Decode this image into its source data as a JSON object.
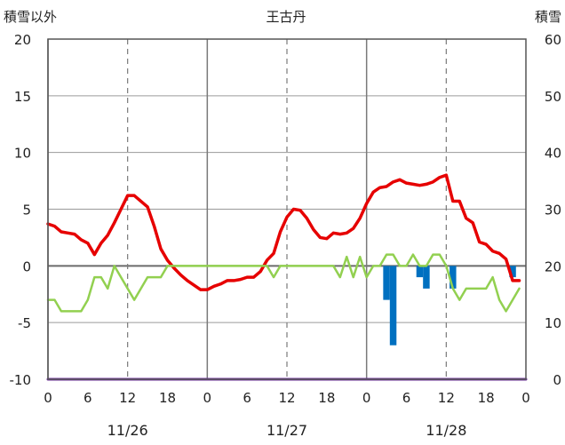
{
  "chart_data": {
    "type": "line",
    "title": "王古丹",
    "left_axis_label": "積雪以外",
    "right_axis_label": "積雪",
    "y_left": {
      "min": -10,
      "max": 20,
      "ticks": [
        20,
        15,
        10,
        5,
        0,
        -5,
        -10
      ],
      "tick_labels": [
        "20",
        "15",
        "10",
        "5",
        "0",
        "-5",
        "-10"
      ]
    },
    "y_right": {
      "min": 0,
      "max": 60,
      "ticks": [
        60,
        50,
        40,
        30,
        20,
        10,
        0
      ],
      "tick_labels": [
        "60",
        "50",
        "40",
        "30",
        "20",
        "10",
        "0"
      ]
    },
    "x_axis": {
      "hours_total": 72,
      "ticks": [
        0,
        6,
        12,
        18,
        24,
        30,
        36,
        42,
        48,
        54,
        60,
        66,
        72
      ],
      "tick_labels": [
        "0",
        "6",
        "12",
        "18",
        "0",
        "6",
        "12",
        "18",
        "0",
        "6",
        "12",
        "18",
        "0"
      ],
      "day_starts": [
        0,
        24,
        48
      ],
      "date_labels": [
        {
          "at": 12,
          "label": "11/26"
        },
        {
          "at": 36,
          "label": "11/27"
        },
        {
          "at": 60,
          "label": "11/28"
        }
      ],
      "minor_dashed": [
        12,
        36,
        60
      ]
    },
    "grid": true,
    "series": [
      {
        "axis": "left",
        "style": "line",
        "color": "#e60000",
        "width": 3.5,
        "points": [
          [
            0,
            3.7
          ],
          [
            1,
            3.5
          ],
          [
            2,
            3.0
          ],
          [
            3,
            2.9
          ],
          [
            4,
            2.8
          ],
          [
            5,
            2.3
          ],
          [
            6,
            2.0
          ],
          [
            7,
            1.0
          ],
          [
            8,
            2.0
          ],
          [
            9,
            2.7
          ],
          [
            10,
            3.8
          ],
          [
            11,
            5.0
          ],
          [
            12,
            6.2
          ],
          [
            13,
            6.2
          ],
          [
            14,
            5.7
          ],
          [
            15,
            5.2
          ],
          [
            16,
            3.5
          ],
          [
            17,
            1.5
          ],
          [
            18,
            0.5
          ],
          [
            19,
            -0.2
          ],
          [
            20,
            -0.8
          ],
          [
            21,
            -1.3
          ],
          [
            22,
            -1.7
          ],
          [
            23,
            -2.1
          ],
          [
            24,
            -2.1
          ],
          [
            25,
            -1.8
          ],
          [
            26,
            -1.6
          ],
          [
            27,
            -1.3
          ],
          [
            28,
            -1.3
          ],
          [
            29,
            -1.2
          ],
          [
            30,
            -1.0
          ],
          [
            31,
            -1.0
          ],
          [
            32,
            -0.5
          ],
          [
            33,
            0.5
          ],
          [
            34,
            1.1
          ],
          [
            35,
            3.0
          ],
          [
            36,
            4.3
          ],
          [
            37,
            5.0
          ],
          [
            38,
            4.9
          ],
          [
            39,
            4.2
          ],
          [
            40,
            3.2
          ],
          [
            41,
            2.5
          ],
          [
            42,
            2.4
          ],
          [
            43,
            2.9
          ],
          [
            44,
            2.8
          ],
          [
            45,
            2.9
          ],
          [
            46,
            3.3
          ],
          [
            47,
            4.2
          ],
          [
            48,
            5.5
          ],
          [
            49,
            6.5
          ],
          [
            50,
            6.9
          ],
          [
            51,
            7.0
          ],
          [
            52,
            7.4
          ],
          [
            53,
            7.6
          ],
          [
            54,
            7.3
          ],
          [
            55,
            7.2
          ],
          [
            56,
            7.1
          ],
          [
            57,
            7.2
          ],
          [
            58,
            7.4
          ],
          [
            59,
            7.8
          ],
          [
            60,
            8.0
          ],
          [
            61,
            5.7
          ],
          [
            62,
            5.7
          ],
          [
            63,
            4.2
          ],
          [
            64,
            3.8
          ],
          [
            65,
            2.1
          ],
          [
            66,
            1.9
          ],
          [
            67,
            1.3
          ],
          [
            68,
            1.1
          ],
          [
            69,
            0.6
          ],
          [
            70,
            -1.3
          ],
          [
            71,
            -1.3
          ]
        ]
      },
      {
        "axis": "left",
        "style": "line",
        "color": "#92d050",
        "width": 2.5,
        "points": [
          [
            0,
            -3
          ],
          [
            1,
            -3
          ],
          [
            2,
            -4
          ],
          [
            3,
            -4
          ],
          [
            4,
            -4
          ],
          [
            5,
            -4
          ],
          [
            6,
            -3
          ],
          [
            7,
            -1
          ],
          [
            8,
            -1
          ],
          [
            9,
            -2
          ],
          [
            10,
            0
          ],
          [
            11,
            -1
          ],
          [
            12,
            -2
          ],
          [
            13,
            -3
          ],
          [
            14,
            -2
          ],
          [
            15,
            -1
          ],
          [
            16,
            -1
          ],
          [
            17,
            -1
          ],
          [
            18,
            0
          ],
          [
            19,
            0
          ],
          [
            20,
            0
          ],
          [
            21,
            0
          ],
          [
            22,
            0
          ],
          [
            23,
            0
          ],
          [
            24,
            0
          ],
          [
            25,
            0
          ],
          [
            26,
            0
          ],
          [
            27,
            0
          ],
          [
            28,
            0
          ],
          [
            29,
            0
          ],
          [
            30,
            0
          ],
          [
            31,
            0
          ],
          [
            32,
            0
          ],
          [
            33,
            0
          ],
          [
            34,
            -1
          ],
          [
            35,
            0
          ],
          [
            36,
            0
          ],
          [
            37,
            0
          ],
          [
            38,
            0
          ],
          [
            39,
            0
          ],
          [
            40,
            0
          ],
          [
            41,
            0
          ],
          [
            42,
            0
          ],
          [
            43,
            0
          ],
          [
            44,
            -1
          ],
          [
            45,
            0.8
          ],
          [
            46,
            -1
          ],
          [
            47,
            0.8
          ],
          [
            48,
            -1
          ],
          [
            49,
            0
          ],
          [
            50,
            0
          ],
          [
            51,
            1
          ],
          [
            52,
            1
          ],
          [
            53,
            0
          ],
          [
            54,
            0
          ],
          [
            55,
            1
          ],
          [
            56,
            0
          ],
          [
            57,
            0
          ],
          [
            58,
            1
          ],
          [
            59,
            1
          ],
          [
            60,
            0
          ],
          [
            61,
            -2
          ],
          [
            62,
            -3
          ],
          [
            63,
            -2
          ],
          [
            64,
            -2
          ],
          [
            65,
            -2
          ],
          [
            66,
            -2
          ],
          [
            67,
            -1
          ],
          [
            68,
            -3
          ],
          [
            69,
            -4
          ],
          [
            70,
            -3
          ],
          [
            71,
            -2
          ]
        ]
      },
      {
        "axis": "left",
        "style": "bar",
        "color": "#0070c0",
        "bars": [
          [
            51,
            -3
          ],
          [
            52,
            -7
          ],
          [
            56,
            -1
          ],
          [
            57,
            -2
          ],
          [
            61,
            -2
          ],
          [
            70,
            -1
          ]
        ]
      },
      {
        "axis": "left",
        "style": "line",
        "color": "#7030a0",
        "width": 3,
        "points": [
          [
            0,
            -10
          ],
          [
            72,
            -10
          ]
        ]
      }
    ]
  }
}
